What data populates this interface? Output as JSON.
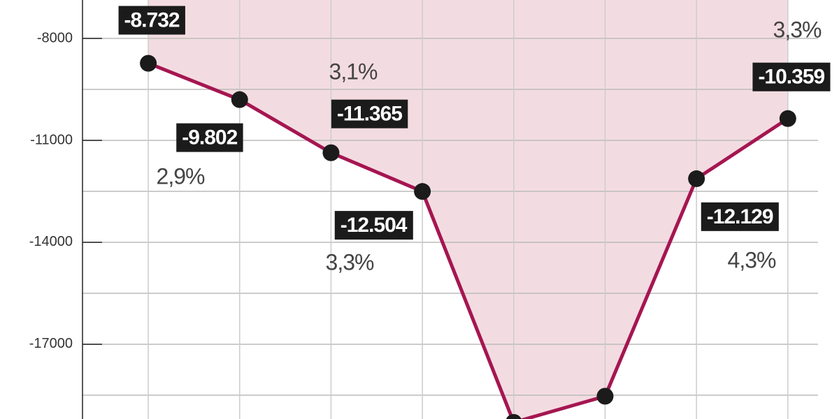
{
  "chart_data": {
    "type": "line",
    "x": [
      1,
      2,
      3,
      4,
      5,
      6,
      7,
      8
    ],
    "values": [
      -8732,
      -9802,
      -11365,
      -12504,
      -19300,
      -18530,
      -12129,
      -10359
    ],
    "value_labels": [
      "-8.732",
      "-9.802",
      "-11.365",
      "-12.504",
      null,
      null,
      "-12.129",
      "-10.359"
    ],
    "annotations": [
      "3,1%",
      "2,9%",
      "3,3%",
      "4,3%",
      "3,3%"
    ],
    "color": "#a51651",
    "area_color": "#f3dce1",
    "xlim": [
      0.28,
      8.56
    ],
    "ylim": [
      -19200,
      -6870
    ],
    "yticks": [
      -8000,
      -11000,
      -14000,
      -17000
    ],
    "minor_gridlines": [
      -9500,
      -12500,
      -15500,
      -18500
    ],
    "grid": true
  }
}
